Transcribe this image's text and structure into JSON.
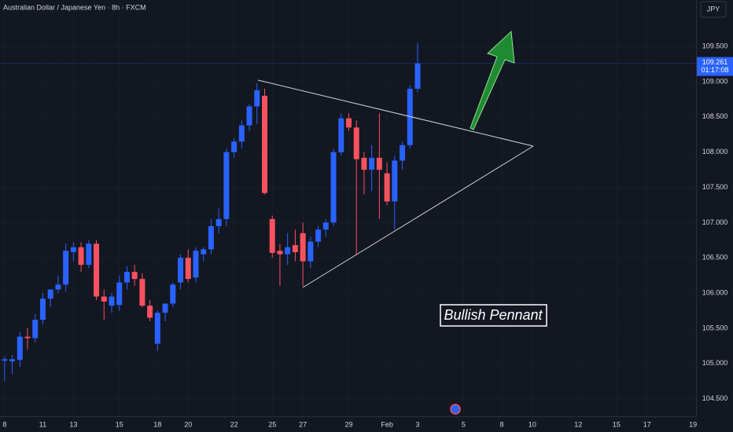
{
  "chart_data": {
    "type": "candlestick",
    "title": "Australian Dollar / Japanese Yen · 8h · FXCM",
    "currency": "JPY",
    "annotation": "Bullish Pennant",
    "up_color": "#2962ff",
    "down_color": "#f7525f",
    "open": [
      105.04,
      105.03,
      105.05,
      105.38,
      105.36,
      105.62,
      105.92,
      106.05,
      106.12,
      106.58,
      106.65,
      106.4,
      106.7,
      105.95,
      105.82,
      105.83,
      106.15,
      106.3,
      106.2,
      105.82,
      105.28,
      105.72,
      105.85,
      106.15,
      106.5,
      106.22,
      106.55,
      106.62,
      106.95,
      107.05,
      108.0,
      108.15,
      108.38,
      108.65,
      108.8,
      107.05,
      106.6,
      106.55,
      106.68,
      106.85,
      106.45,
      106.73,
      106.9,
      107.0,
      108.0,
      108.48,
      108.35,
      107.92,
      107.75,
      107.92,
      107.7,
      107.3,
      107.88,
      108.1,
      108.9
    ],
    "high": [
      105.1,
      105.12,
      105.45,
      105.5,
      105.7,
      106.0,
      106.05,
      106.25,
      106.7,
      106.72,
      106.72,
      106.75,
      106.75,
      106.05,
      106.0,
      106.25,
      106.38,
      106.4,
      106.28,
      105.9,
      105.75,
      105.85,
      106.15,
      106.55,
      106.62,
      106.65,
      106.65,
      107.05,
      107.2,
      108.05,
      108.2,
      108.45,
      108.68,
      108.98,
      108.9,
      107.1,
      106.7,
      106.85,
      106.9,
      107.0,
      106.8,
      106.95,
      107.05,
      108.05,
      108.55,
      108.55,
      108.45,
      108.0,
      108.1,
      108.55,
      107.85,
      107.95,
      108.15,
      108.95,
      109.55
    ],
    "low": [
      104.75,
      104.85,
      104.95,
      105.2,
      105.3,
      105.55,
      105.8,
      106.0,
      106.02,
      106.45,
      106.3,
      106.35,
      105.9,
      105.62,
      105.72,
      105.75,
      106.05,
      106.1,
      105.8,
      105.6,
      105.18,
      105.6,
      105.8,
      106.05,
      106.15,
      106.15,
      106.45,
      106.55,
      106.85,
      106.95,
      107.92,
      108.05,
      108.3,
      108.4,
      107.4,
      106.5,
      106.1,
      106.4,
      106.45,
      106.1,
      106.35,
      106.65,
      106.8,
      106.95,
      107.95,
      108.3,
      106.55,
      107.4,
      107.45,
      107.05,
      107.25,
      106.9,
      107.75,
      108.05,
      108.85
    ],
    "close": [
      105.06,
      105.06,
      105.38,
      105.36,
      105.62,
      105.92,
      106.05,
      106.12,
      106.6,
      106.65,
      106.4,
      106.7,
      105.95,
      105.88,
      105.95,
      106.15,
      106.3,
      106.2,
      105.82,
      105.65,
      105.72,
      105.85,
      106.12,
      106.5,
      106.2,
      106.6,
      106.62,
      106.95,
      107.05,
      108.0,
      108.15,
      108.38,
      108.65,
      108.88,
      107.42,
      106.57,
      106.55,
      106.65,
      106.58,
      106.45,
      106.73,
      106.9,
      107.0,
      108.0,
      108.48,
      108.35,
      107.9,
      107.75,
      107.92,
      107.75,
      107.3,
      107.88,
      108.1,
      108.9,
      109.26
    ],
    "last_price": {
      "value": 109.261,
      "label": "109.261"
    },
    "countdown": "01:17:08",
    "ylim": [
      104.25,
      110.16
    ],
    "yticks": [
      {
        "value": 104.5,
        "label": "104.500"
      },
      {
        "value": 105,
        "label": "105.000"
      },
      {
        "value": 105.5,
        "label": "105.500"
      },
      {
        "value": 106,
        "label": "106.000"
      },
      {
        "value": 106.5,
        "label": "106.500"
      },
      {
        "value": 107,
        "label": "107.000"
      },
      {
        "value": 107.5,
        "label": "107.500"
      },
      {
        "value": 108,
        "label": "108.000"
      },
      {
        "value": 108.5,
        "label": "108.500"
      },
      {
        "value": 109,
        "label": "109.000"
      },
      {
        "value": 109.5,
        "label": "109.500"
      }
    ],
    "xlim": [
      -0.6,
      90.4
    ],
    "xticks": [
      {
        "value": 0,
        "label": "8"
      },
      {
        "value": 5,
        "label": "11"
      },
      {
        "value": 9,
        "label": "13"
      },
      {
        "value": 15,
        "label": "15"
      },
      {
        "value": 20,
        "label": "18"
      },
      {
        "value": 24,
        "label": "20"
      },
      {
        "value": 30,
        "label": "22"
      },
      {
        "value": 35,
        "label": "25"
      },
      {
        "value": 39,
        "label": "27"
      },
      {
        "value": 45,
        "label": "29"
      },
      {
        "value": 50,
        "label": "Feb"
      },
      {
        "value": 54,
        "label": "3"
      },
      {
        "value": 60,
        "label": "5"
      },
      {
        "value": 65,
        "label": "8"
      },
      {
        "value": 69,
        "label": "10"
      },
      {
        "value": 75,
        "label": "12"
      },
      {
        "value": 80,
        "label": "15"
      },
      {
        "value": 84,
        "label": "17"
      },
      {
        "value": 90,
        "label": "19"
      }
    ]
  }
}
